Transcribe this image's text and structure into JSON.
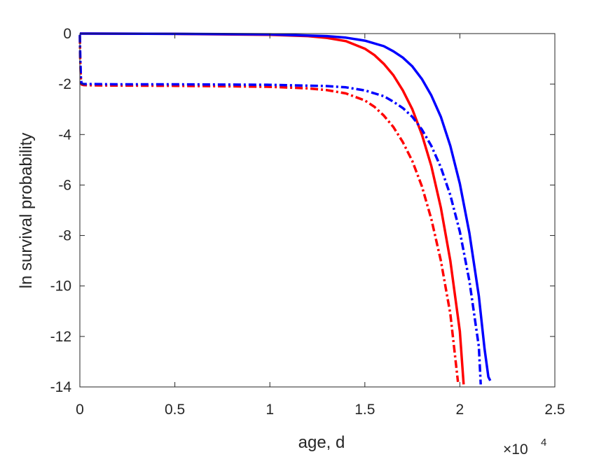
{
  "chart_data": {
    "type": "line",
    "title": "",
    "xlabel": "age, d",
    "ylabel": "ln survival probability",
    "xlim": [
      0,
      25000
    ],
    "ylim": [
      -14,
      0
    ],
    "x_ticks": [
      0,
      5000,
      10000,
      15000,
      20000,
      25000
    ],
    "x_tick_labels": [
      "0",
      "0.5",
      "1",
      "1.5",
      "2",
      "2.5"
    ],
    "x_exponent_base": "×10",
    "x_exponent_power": "4",
    "y_ticks": [
      0,
      -2,
      -4,
      -6,
      -8,
      -10,
      -12,
      -14
    ],
    "y_tick_labels": [
      "0",
      "-2",
      "-4",
      "-6",
      "-8",
      "-10",
      "-12",
      "-14"
    ],
    "grid": false,
    "box": true,
    "series": [
      {
        "color": "#ff0000",
        "style": "solid",
        "x": [
          0,
          5000,
          10000,
          12000,
          13000,
          14000,
          15000,
          15500,
          16000,
          16500,
          17000,
          17500,
          18000,
          18500,
          19000,
          19500,
          20000,
          20200
        ],
        "y": [
          0,
          -0.01,
          -0.05,
          -0.1,
          -0.17,
          -0.3,
          -0.6,
          -0.85,
          -1.2,
          -1.65,
          -2.25,
          -3.0,
          -4.0,
          -5.25,
          -6.9,
          -9.0,
          -11.8,
          -13.9
        ]
      },
      {
        "color": "#0000ff",
        "style": "solid",
        "x": [
          0,
          5000,
          10000,
          13000,
          14000,
          15000,
          16000,
          16500,
          17000,
          17500,
          18000,
          18500,
          19000,
          19500,
          20000,
          20500,
          21000,
          21300,
          21500,
          21600
        ],
        "y": [
          0,
          -0.01,
          -0.03,
          -0.1,
          -0.16,
          -0.28,
          -0.5,
          -0.7,
          -0.95,
          -1.3,
          -1.8,
          -2.45,
          -3.3,
          -4.45,
          -5.95,
          -7.9,
          -10.4,
          -12.5,
          -13.6,
          -13.75
        ]
      },
      {
        "color": "#ff0000",
        "style": "dashdot",
        "x": [
          0,
          20,
          60,
          100,
          200,
          500,
          2000,
          5000,
          8000,
          10000,
          12000,
          13000,
          14000,
          15000,
          15500,
          16000,
          16500,
          17000,
          17500,
          18000,
          18500,
          19000,
          19500,
          19900
        ],
        "y": [
          -0.1,
          -1.0,
          -1.9,
          -2.02,
          -2.04,
          -2.05,
          -2.06,
          -2.07,
          -2.09,
          -2.11,
          -2.17,
          -2.24,
          -2.37,
          -2.65,
          -2.9,
          -3.25,
          -3.7,
          -4.3,
          -5.05,
          -6.05,
          -7.35,
          -9.0,
          -11.1,
          -13.8
        ]
      },
      {
        "color": "#0000ff",
        "style": "dashdot",
        "x": [
          0,
          20,
          60,
          100,
          200,
          500,
          2000,
          5000,
          10000,
          13000,
          14000,
          15000,
          16000,
          16500,
          17000,
          17500,
          18000,
          18500,
          19000,
          19500,
          20000,
          20500,
          21000,
          21100
        ],
        "y": [
          -0.05,
          -0.9,
          -1.85,
          -1.98,
          -2.0,
          -2.0,
          -2.01,
          -2.01,
          -2.03,
          -2.08,
          -2.13,
          -2.25,
          -2.48,
          -2.7,
          -2.95,
          -3.3,
          -3.8,
          -4.45,
          -5.3,
          -6.4,
          -7.85,
          -9.8,
          -12.4,
          -13.9
        ]
      }
    ]
  }
}
